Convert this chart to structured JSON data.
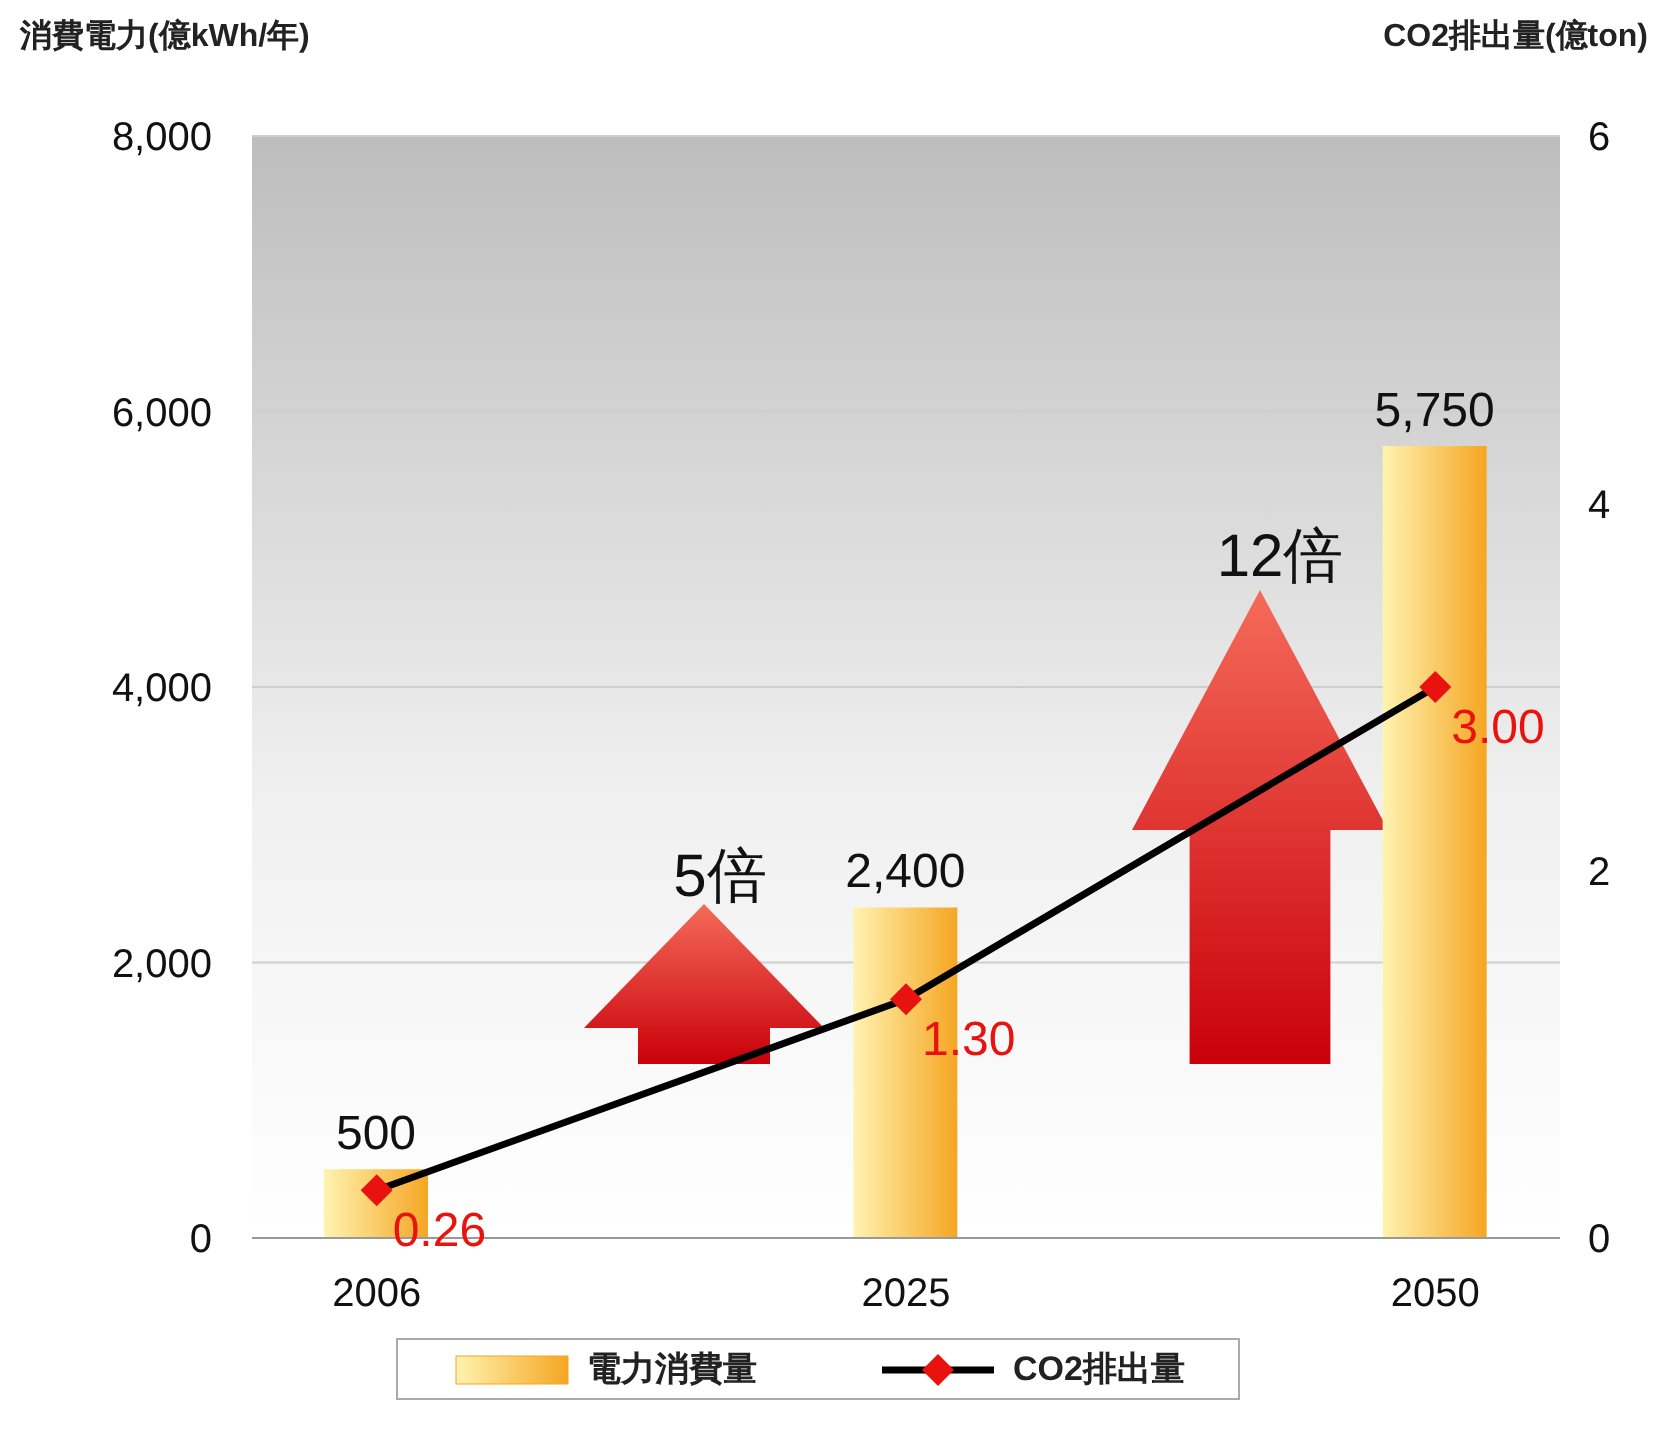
{
  "chart_data": {
    "type": "bar",
    "ylabel": "消費電力(億kWh/年)",
    "y2label": "CO2排出量(億ton)",
    "categories": [
      "2006",
      "2025",
      "2050"
    ],
    "series": [
      {
        "name": "電力消費量",
        "color": "#f5a623",
        "values": [
          500,
          2400,
          5750
        ],
        "value_labels": [
          "500",
          "2,400",
          "5,750"
        ]
      },
      {
        "name": "CO2排出量",
        "type": "line",
        "color": "#000000",
        "axis": "y2",
        "marker": "diamond",
        "values": [
          0.26,
          1.3,
          3.0
        ],
        "value_labels": [
          "0.26",
          "1.30",
          "3.00"
        ]
      }
    ],
    "ylim": [
      0,
      8000
    ],
    "yticks": [
      {
        "value": 0,
        "label": "0"
      },
      {
        "value": 2000,
        "label": "2,000"
      },
      {
        "value": 4000,
        "label": "4,000"
      },
      {
        "value": 6000,
        "label": "6,000"
      },
      {
        "value": 8000,
        "label": "8,000"
      }
    ],
    "y2lim": [
      0,
      6
    ],
    "y2ticks": [
      0,
      2,
      4,
      6
    ],
    "grid": "y",
    "legend": "bottom",
    "annotations": [
      "5倍",
      "12倍"
    ]
  }
}
